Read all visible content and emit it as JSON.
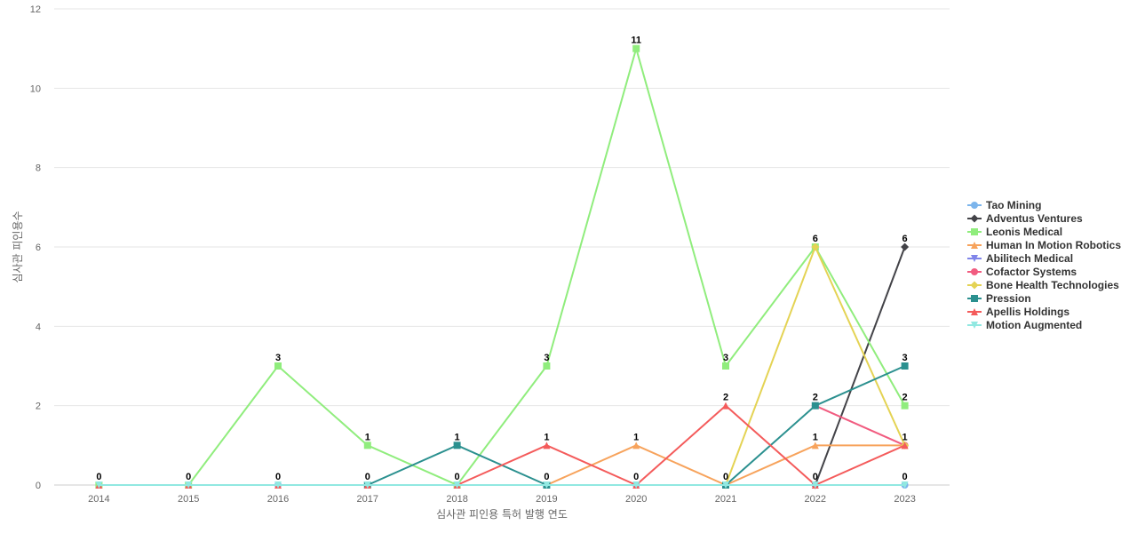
{
  "chart_data": {
    "type": "line",
    "xlabel": "심사관 피인용 특허 발행 연도",
    "ylabel": "심사관 피인용수",
    "x": [
      "2014",
      "2015",
      "2016",
      "2017",
      "2018",
      "2019",
      "2020",
      "2021",
      "2022",
      "2023"
    ],
    "ylim": [
      0,
      12
    ],
    "yticks": [
      0,
      2,
      4,
      6,
      8,
      10,
      12
    ],
    "grid": true,
    "legend_position": "right",
    "series": [
      {
        "name": "Tao Mining",
        "color": "#7cb5ec",
        "marker": "circle",
        "values": [
          0,
          0,
          0,
          0,
          0,
          0,
          0,
          0,
          0,
          0
        ]
      },
      {
        "name": "Adventus Ventures",
        "color": "#434348",
        "marker": "diamond",
        "values": [
          null,
          null,
          null,
          null,
          null,
          null,
          null,
          null,
          0,
          6
        ]
      },
      {
        "name": "Leonis Medical",
        "color": "#90ed7d",
        "marker": "square",
        "values": [
          0,
          0,
          3,
          1,
          0,
          3,
          11,
          3,
          6,
          2
        ]
      },
      {
        "name": "Human In Motion Robotics",
        "color": "#f7a35c",
        "marker": "triangle",
        "values": [
          null,
          null,
          null,
          null,
          null,
          0,
          1,
          0,
          1,
          1
        ]
      },
      {
        "name": "Abilitech Medical",
        "color": "#8085e9",
        "marker": "triangle-down",
        "values": [
          null,
          null,
          null,
          null,
          null,
          null,
          null,
          null,
          null,
          null
        ]
      },
      {
        "name": "Cofactor Systems",
        "color": "#f15c80",
        "marker": "circle",
        "values": [
          null,
          null,
          null,
          null,
          null,
          null,
          null,
          null,
          2,
          1
        ]
      },
      {
        "name": "Bone Health Technologies",
        "color": "#e4d354",
        "marker": "diamond",
        "values": [
          null,
          null,
          null,
          null,
          null,
          null,
          null,
          0,
          6,
          1
        ]
      },
      {
        "name": "Pression",
        "color": "#2b908f",
        "marker": "square",
        "values": [
          null,
          null,
          null,
          0,
          1,
          0,
          null,
          0,
          2,
          3
        ]
      },
      {
        "name": "Apellis Holdings",
        "color": "#f45b5b",
        "marker": "triangle",
        "values": [
          0,
          0,
          0,
          0,
          0,
          1,
          0,
          2,
          0,
          1
        ]
      },
      {
        "name": "Motion Augmented",
        "color": "#91e8e1",
        "marker": "triangle-down",
        "values": [
          0,
          0,
          0,
          0,
          0,
          0,
          0,
          0,
          0,
          0
        ]
      }
    ],
    "data_labels": [
      {
        "x": "2014",
        "value": 0
      },
      {
        "x": "2015",
        "value": 0
      },
      {
        "x": "2016",
        "value": 3
      },
      {
        "x": "2016",
        "value": 0
      },
      {
        "x": "2017",
        "value": 1
      },
      {
        "x": "2017",
        "value": 0
      },
      {
        "x": "2018",
        "value": 1
      },
      {
        "x": "2018",
        "value": 0
      },
      {
        "x": "2019",
        "value": 3
      },
      {
        "x": "2019",
        "value": 1
      },
      {
        "x": "2019",
        "value": 0
      },
      {
        "x": "2020",
        "value": 11
      },
      {
        "x": "2020",
        "value": 1
      },
      {
        "x": "2020",
        "value": 0
      },
      {
        "x": "2021",
        "value": 3
      },
      {
        "x": "2021",
        "value": 2
      },
      {
        "x": "2021",
        "value": 0
      },
      {
        "x": "2022",
        "value": 6
      },
      {
        "x": "2022",
        "value": 2
      },
      {
        "x": "2022",
        "value": 1
      },
      {
        "x": "2022",
        "value": 0
      },
      {
        "x": "2023",
        "value": 6
      },
      {
        "x": "2023",
        "value": 3
      },
      {
        "x": "2023",
        "value": 2
      },
      {
        "x": "2023",
        "value": 1
      },
      {
        "x": "2023",
        "value": 0
      }
    ]
  }
}
